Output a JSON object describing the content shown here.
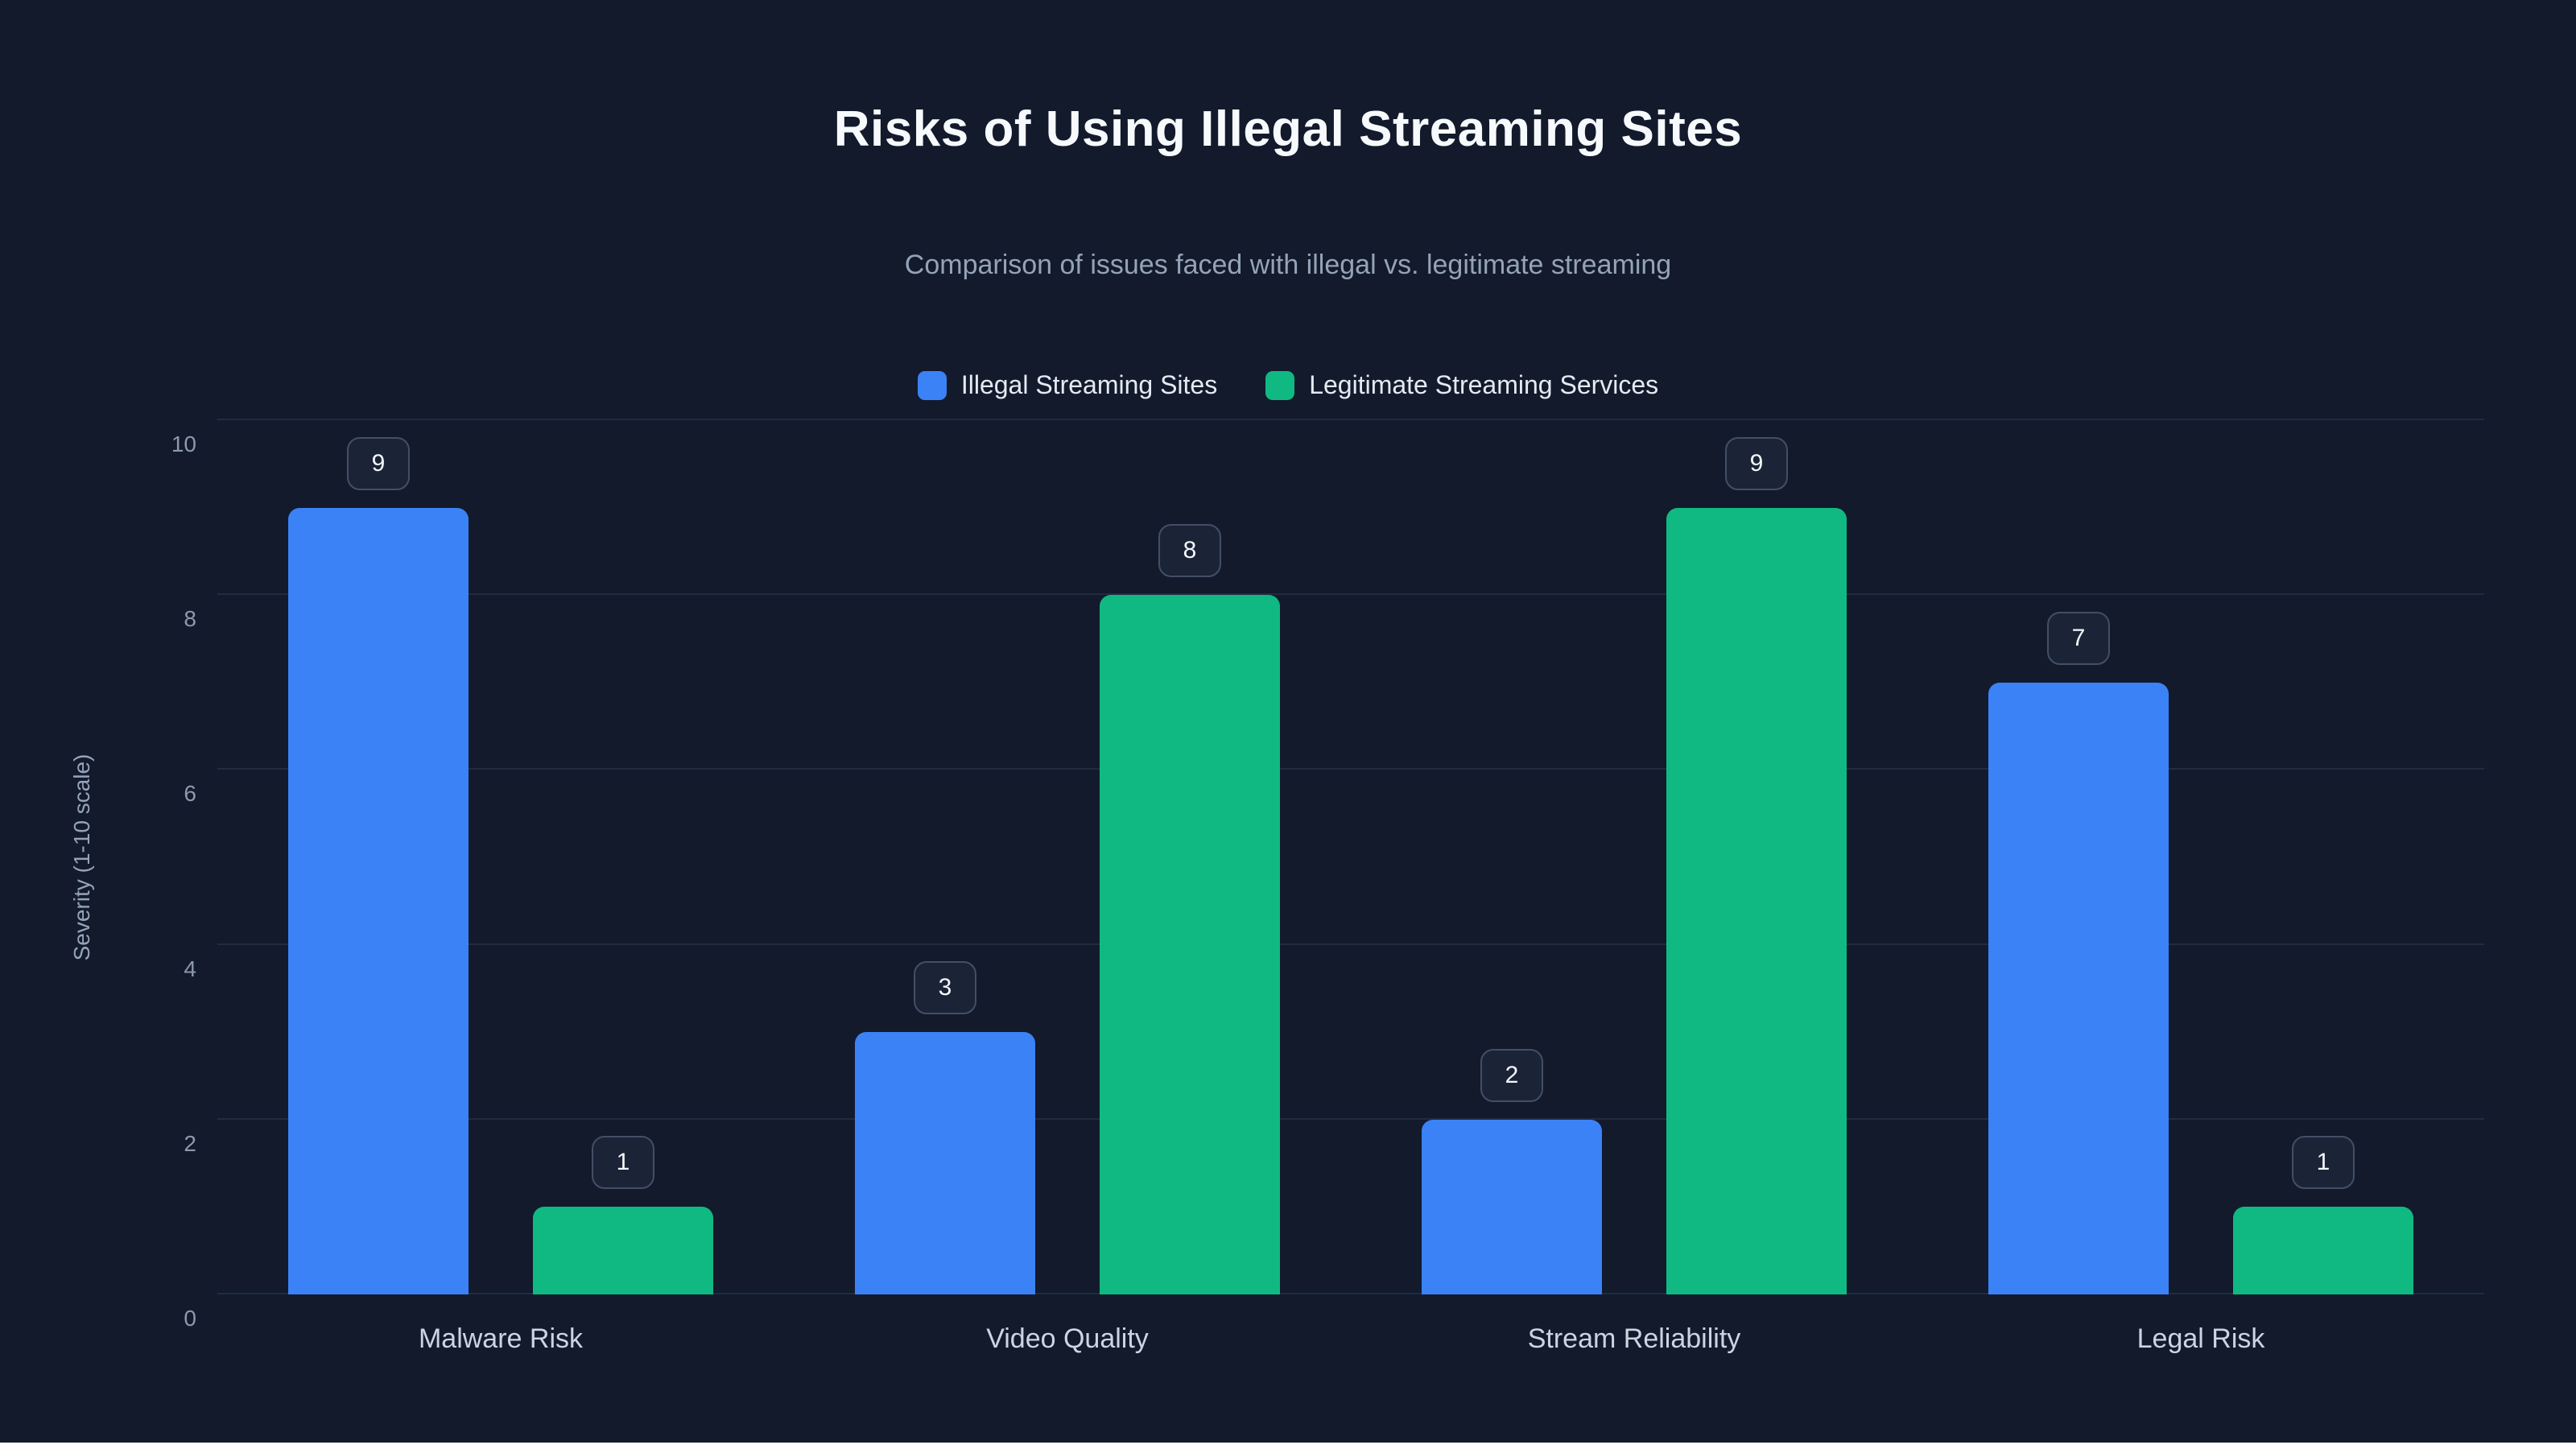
{
  "page": {
    "title": "Risks of Using Illegal Streaming Sites",
    "subtitle": "Comparison of issues faced with illegal vs. legitimate streaming"
  },
  "chart_data": {
    "type": "bar",
    "title": "Risks of Using Illegal Streaming Sites",
    "subtitle": "Comparison of issues faced with illegal vs. legitimate streaming",
    "categories": [
      "Malware Risk",
      "Video Quality",
      "Stream Reliability",
      "Legal Risk"
    ],
    "series": [
      {
        "name": "Illegal Streaming Sites",
        "color": "#3b82f6",
        "values": [
          9,
          3,
          2,
          7
        ]
      },
      {
        "name": "Legitimate Streaming Services",
        "color": "#10b981",
        "values": [
          1,
          8,
          9,
          1
        ]
      }
    ],
    "xlabel": "",
    "ylabel": "Severity (1-10 scale)",
    "ylim": [
      0,
      10
    ],
    "yticks": [
      0,
      2,
      4,
      6,
      8,
      10
    ],
    "grid": true,
    "legend_position": "top",
    "value_labels": [
      9,
      1,
      3,
      8,
      2,
      9,
      7,
      1
    ]
  },
  "colors": {
    "background": "#121a2c",
    "bar_blue": "#3b82f6",
    "bar_green": "#10b981",
    "grid": "#212c41",
    "chip_border": "#434f66",
    "chip_background": "#1b2437",
    "text_primary": "#f7fafc",
    "text_muted": "#94a3b8"
  }
}
